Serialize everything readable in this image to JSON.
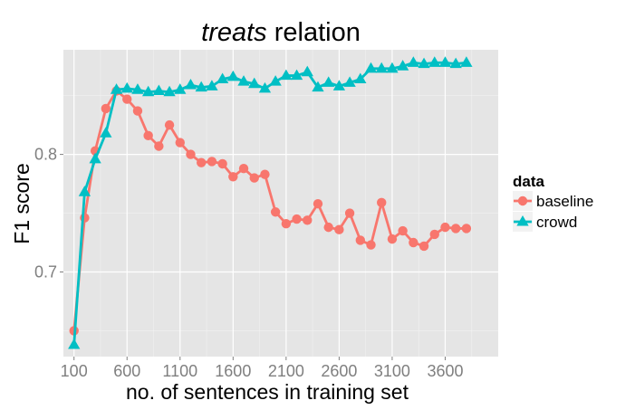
{
  "chart_data": {
    "type": "line",
    "title_italic": "treats",
    "title_rest": " relation",
    "xlabel": "no. of sentences in training set",
    "ylabel": "F1 score",
    "xlim": [
      0,
      4100
    ],
    "ylim": [
      0.628,
      0.889
    ],
    "xticks": [
      100,
      600,
      1100,
      1600,
      2100,
      2600,
      3100,
      3600
    ],
    "xtick_labels": [
      "100",
      "600",
      "1100",
      "1600",
      "2100",
      "2600",
      "3100",
      "3600"
    ],
    "yticks": [
      0.7,
      0.8
    ],
    "ytick_labels": [
      "0.7",
      "0.8"
    ],
    "grid": true,
    "legend": {
      "title": "data",
      "placement": "right"
    },
    "series": [
      {
        "name": "baseline",
        "color": "#F8766D",
        "marker": "circle",
        "x": [
          100,
          200,
          300,
          400,
          500,
          600,
          700,
          800,
          900,
          1000,
          1100,
          1200,
          1300,
          1400,
          1500,
          1600,
          1700,
          1800,
          1900,
          2000,
          2100,
          2200,
          2300,
          2400,
          2500,
          2600,
          2700,
          2800,
          2900,
          3000,
          3100,
          3200,
          3300,
          3400,
          3500,
          3600,
          3700,
          3800
        ],
        "values": [
          0.65,
          0.746,
          0.803,
          0.839,
          0.854,
          0.847,
          0.837,
          0.816,
          0.807,
          0.825,
          0.81,
          0.8,
          0.793,
          0.794,
          0.792,
          0.781,
          0.788,
          0.78,
          0.783,
          0.751,
          0.741,
          0.745,
          0.744,
          0.758,
          0.738,
          0.736,
          0.75,
          0.727,
          0.723,
          0.759,
          0.728,
          0.735,
          0.725,
          0.722,
          0.732,
          0.738,
          0.737,
          0.737
        ]
      },
      {
        "name": "crowd",
        "color": "#00BFC4",
        "marker": "triangle",
        "x": [
          100,
          200,
          300,
          400,
          500,
          600,
          700,
          800,
          900,
          1000,
          1100,
          1200,
          1300,
          1400,
          1500,
          1600,
          1700,
          1800,
          1900,
          2000,
          2100,
          2200,
          2300,
          2400,
          2500,
          2600,
          2700,
          2800,
          2900,
          3000,
          3100,
          3200,
          3300,
          3400,
          3500,
          3600,
          3700,
          3800
        ],
        "values": [
          0.638,
          0.768,
          0.796,
          0.818,
          0.855,
          0.856,
          0.855,
          0.853,
          0.854,
          0.853,
          0.855,
          0.859,
          0.857,
          0.858,
          0.864,
          0.866,
          0.862,
          0.86,
          0.856,
          0.862,
          0.867,
          0.867,
          0.87,
          0.857,
          0.861,
          0.858,
          0.861,
          0.864,
          0.873,
          0.873,
          0.873,
          0.875,
          0.878,
          0.877,
          0.878,
          0.878,
          0.877,
          0.878
        ]
      }
    ]
  }
}
